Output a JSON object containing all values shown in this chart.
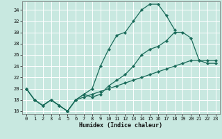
{
  "xlabel": "Humidex (Indice chaleur)",
  "bg_color": "#c8e8e0",
  "grid_color": "#ffffff",
  "line_color": "#1a6b5a",
  "xlim": [
    -0.5,
    23.5
  ],
  "ylim": [
    15.5,
    35.5
  ],
  "xticks": [
    0,
    1,
    2,
    3,
    4,
    5,
    6,
    7,
    8,
    9,
    10,
    11,
    12,
    13,
    14,
    15,
    16,
    17,
    18,
    19,
    20,
    21,
    22,
    23
  ],
  "yticks": [
    16,
    18,
    20,
    22,
    24,
    26,
    28,
    30,
    32,
    34
  ],
  "line1_x": [
    0,
    1,
    2,
    3,
    4,
    5,
    6,
    7,
    8,
    9,
    10,
    11,
    12,
    13,
    14,
    15,
    16,
    17,
    18
  ],
  "line1_y": [
    20,
    18,
    17,
    18,
    17,
    16,
    18,
    19,
    20,
    24,
    27,
    29.5,
    30,
    32,
    34,
    35,
    35,
    33,
    30.5
  ],
  "line2_x": [
    0,
    1,
    2,
    3,
    4,
    5,
    6,
    7,
    8,
    9,
    10,
    11,
    12,
    13,
    14,
    15,
    16,
    17,
    18,
    19,
    20,
    21,
    22,
    23
  ],
  "line2_y": [
    20,
    18,
    17,
    18,
    17,
    16,
    18,
    19,
    18.5,
    19,
    20.5,
    21.5,
    22.5,
    24,
    26,
    27,
    27.5,
    28.5,
    30,
    30,
    29,
    25,
    24.5,
    24.5
  ],
  "line3_x": [
    0,
    1,
    2,
    3,
    4,
    5,
    6,
    7,
    8,
    9,
    10,
    11,
    12,
    13,
    14,
    15,
    16,
    17,
    18,
    19,
    20,
    21,
    22,
    23
  ],
  "line3_y": [
    20,
    18,
    17,
    18,
    17,
    16,
    18,
    18.5,
    19,
    19.5,
    20,
    20.5,
    21,
    21.5,
    22,
    22.5,
    23,
    23.5,
    24,
    24.5,
    25,
    25,
    25,
    25
  ]
}
